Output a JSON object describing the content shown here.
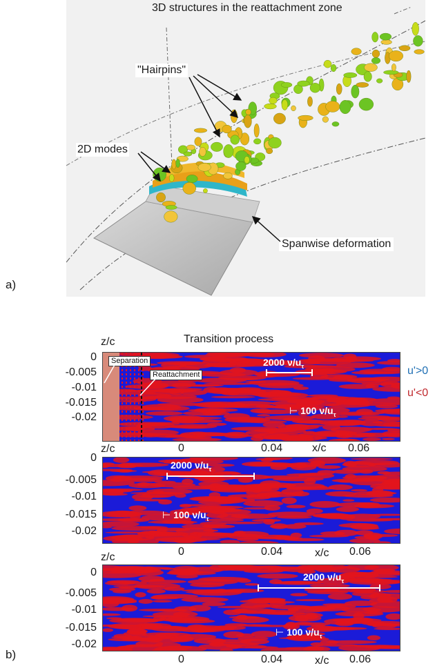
{
  "figure_a": {
    "panel_label": "a)",
    "title": "3D structures in the reattachment zone",
    "annotations": {
      "hairpins": "\"Hairpins\"",
      "modes_2d": "2D modes",
      "spanwise": "Spanwise deformation"
    }
  },
  "figure_b": {
    "panel_label": "b)",
    "title": "Transition process",
    "legend": {
      "positive": "u'>0",
      "negative": "u'<0",
      "positive_color": "#1f6fb4",
      "negative_color": "#c0282d"
    },
    "ylabel": "z/c",
    "xlabel": "x/c",
    "y_ticks": [
      "0",
      "-0.005",
      "-0.01",
      "-0.015",
      "-0.02"
    ],
    "x_ticks": [
      "0",
      "0.04",
      "0.06"
    ],
    "panel1": {
      "separation": "Separation",
      "reattachment": "Reattachment",
      "scale_large": "2000 ν/u",
      "scale_small": "100 ν/u",
      "sub": "τ"
    },
    "panel2": {
      "scale_large": "2000 ν/u",
      "scale_small": "100 ν/u",
      "sub": "τ"
    },
    "panel3": {
      "scale_large": "2000 ν/u",
      "scale_small": "100 ν/u",
      "sub": "τ"
    }
  },
  "colors": {
    "blue": "#1b1bd8",
    "red": "#e3141c"
  }
}
